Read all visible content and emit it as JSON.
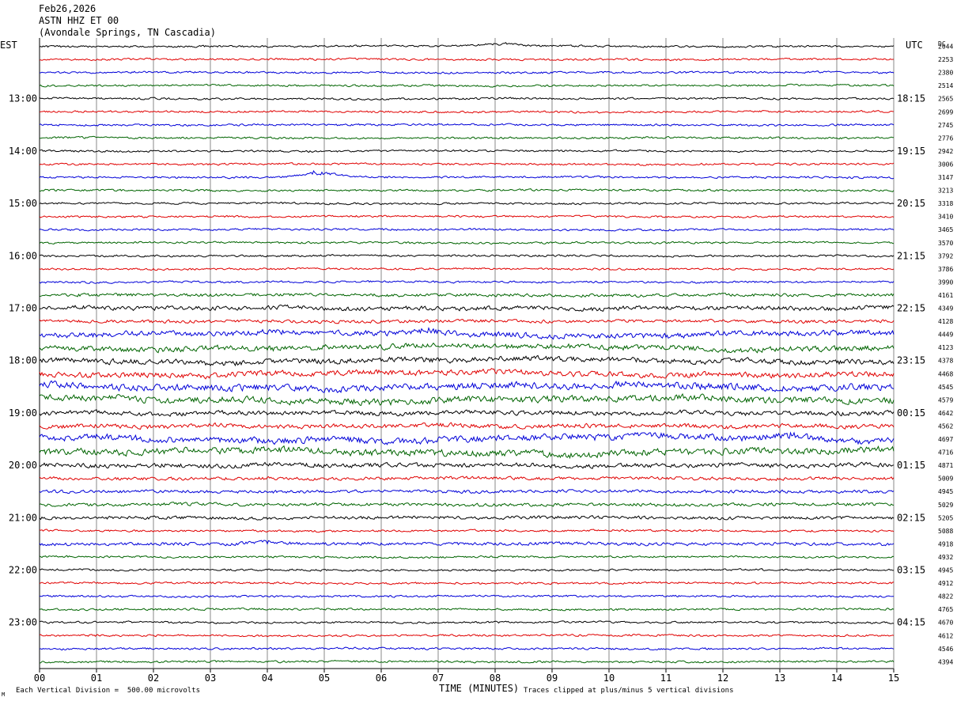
{
  "header": {
    "date": "Feb26,2026",
    "station": "ASTN HHZ ET 00",
    "location": "(Avondale Springs, TN Cascadia)"
  },
  "labels": {
    "left_zone": "EST",
    "right_zone": "UTC",
    "dc_header": "DC"
  },
  "footer": {
    "xlabel": "TIME (MINUTES)",
    "scale_note": "Each Vertical Division =  500.00 microvolts",
    "clip_note": "Traces clipped at plus/minus 5 vertical divisions",
    "corner_mark": "M"
  },
  "chart_data": {
    "type": "line",
    "title": "ASTN HHZ ET 00",
    "xlabel": "TIME (MINUTES)",
    "xlim": [
      0,
      15
    ],
    "x_ticks": [
      "00",
      "01",
      "02",
      "03",
      "04",
      "05",
      "06",
      "07",
      "08",
      "09",
      "10",
      "11",
      "12",
      "13",
      "14",
      "15"
    ],
    "left_hour_labels": [
      "13:00",
      "14:00",
      "15:00",
      "16:00",
      "17:00",
      "18:00",
      "19:00",
      "20:00",
      "21:00",
      "22:00",
      "23:00"
    ],
    "right_hour_labels": [
      "18:15",
      "19:15",
      "20:15",
      "21:15",
      "22:15",
      "23:15",
      "00:15",
      "01:15",
      "02:15",
      "03:15",
      "04:15"
    ],
    "trace_colors": [
      "#000000",
      "#e00000",
      "#0000d8",
      "#006400"
    ],
    "dc_offsets": [
      "2044",
      "2253",
      "2380",
      "2514",
      "2565",
      "2699",
      "2745",
      "2776",
      "2942",
      "3006",
      "3147",
      "3213",
      "3318",
      "3410",
      "3465",
      "3570",
      "3792",
      "3786",
      "3990",
      "4161",
      "4349",
      "4128",
      "4449",
      "4123",
      "4378",
      "4468",
      "4545",
      "4579",
      "4642",
      "4562",
      "4697",
      "4716",
      "4871",
      "5009",
      "4945",
      "5029",
      "5205",
      "5088",
      "4918",
      "4932",
      "4945",
      "4912",
      "4822",
      "4765",
      "4670",
      "4612",
      "4546",
      "4394"
    ],
    "trace_activity": [
      1,
      1,
      1,
      1,
      1,
      1,
      1,
      1,
      1,
      1,
      1,
      1,
      1,
      1,
      1,
      1,
      1,
      1,
      1,
      2,
      3,
      2,
      4,
      4,
      4,
      4,
      5,
      5,
      3,
      3,
      5,
      5,
      3,
      2,
      2,
      2,
      2,
      1,
      2,
      1,
      1,
      1,
      1,
      1,
      1,
      1,
      1,
      1
    ],
    "events": [
      {
        "trace": 0,
        "minute": 8.1,
        "amplitude": 3
      },
      {
        "trace": 10,
        "minute": 4.9,
        "amplitude": 5
      },
      {
        "trace": 22,
        "minute": 6.9,
        "amplitude": 5
      },
      {
        "trace": 30,
        "minute": 10.6,
        "amplitude": 5
      },
      {
        "trace": 30,
        "minute": 13.2,
        "amplitude": 4
      },
      {
        "trace": 38,
        "minute": 4.0,
        "amplitude": 3
      }
    ],
    "scale_microvolts_per_division": 500.0,
    "clip_divisions": 5
  }
}
